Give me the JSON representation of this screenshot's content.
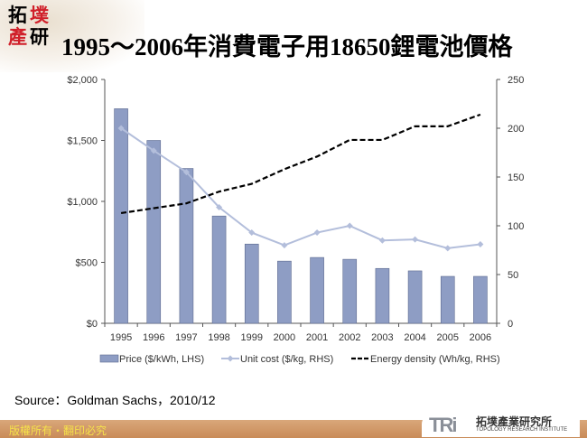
{
  "header": {
    "title": "1995～2006年消費電子用18650鋰電池價格",
    "logo_text": [
      "拓",
      "墣",
      "產",
      "研"
    ]
  },
  "chart_data": {
    "type": "bar",
    "categories": [
      "1995",
      "1996",
      "1997",
      "1998",
      "1999",
      "2000",
      "2001",
      "2002",
      "2003",
      "2004",
      "2005",
      "2006"
    ],
    "left_axis": {
      "range": [
        0,
        2000
      ],
      "ticks": [
        "$0",
        "$500",
        "$1,000",
        "$1,500",
        "$2,000"
      ],
      "tick_values": [
        0,
        500,
        1000,
        1500,
        2000
      ]
    },
    "right_axis": {
      "range": [
        0,
        250
      ],
      "ticks": [
        "0",
        "50",
        "100",
        "150",
        "200",
        "250"
      ],
      "tick_values": [
        0,
        50,
        100,
        150,
        200,
        250
      ]
    },
    "series": [
      {
        "name": "Price ($/kWh, LHS)",
        "type": "bar",
        "axis": "left",
        "color": "#8e9dc4",
        "values": [
          1760,
          1500,
          1270,
          880,
          650,
          510,
          540,
          525,
          450,
          430,
          385,
          385
        ]
      },
      {
        "name": "Unit cost ($/kg, RHS)",
        "type": "line",
        "axis": "right",
        "color": "#b3bedb",
        "marker": "diamond",
        "values": [
          200,
          177,
          155,
          119,
          93,
          80,
          93,
          100,
          85,
          86,
          77,
          81
        ]
      },
      {
        "name": "Energy density (Wh/kg, RHS)",
        "type": "line",
        "axis": "right",
        "color": "#000000",
        "dash": true,
        "values": [
          113,
          118,
          123,
          135,
          143,
          158,
          171,
          188,
          188,
          202,
          202,
          214
        ]
      }
    ],
    "grid": false,
    "legend": "bottom"
  },
  "footer": {
    "source": "Source：Goldman Sachs，2010/12",
    "copyright": "版權所有‧翻印必究",
    "org_mark": "TRi",
    "org_cn": "拓墣產業研究所",
    "org_en": "TOPOLOGY RESEARCH INSTITUTE"
  }
}
